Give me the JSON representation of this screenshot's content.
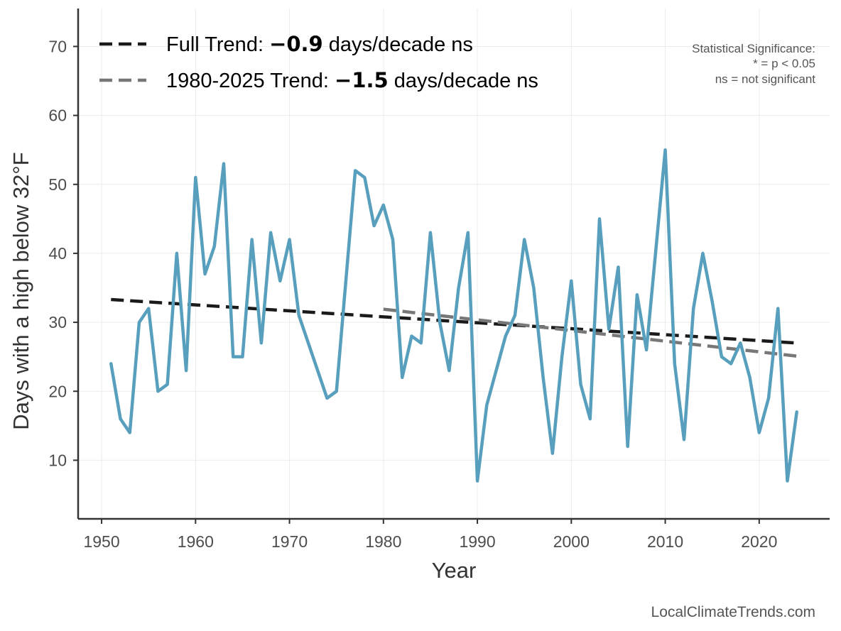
{
  "chart_data": {
    "type": "line",
    "xlabel": "Year",
    "ylabel": "Days with a high below 32°F",
    "xlim": [
      1947.5,
      2027.5
    ],
    "ylim": [
      1.5,
      75.5
    ],
    "xticks": [
      1950,
      1960,
      1970,
      1980,
      1990,
      2000,
      2010,
      2020
    ],
    "yticks": [
      10,
      20,
      30,
      40,
      50,
      60,
      70
    ],
    "grid": true,
    "legend_position": "top-left",
    "series": [
      {
        "color": "#579fbd",
        "x": [
          1951,
          1952,
          1953,
          1954,
          1955,
          1956,
          1957,
          1958,
          1959,
          1960,
          1961,
          1962,
          1963,
          1964,
          1965,
          1966,
          1967,
          1968,
          1969,
          1970,
          1971,
          1974,
          1975,
          1977,
          1978,
          1979,
          1980,
          1981,
          1982,
          1983,
          1984,
          1985,
          1986,
          1987,
          1988,
          1989,
          1990,
          1991,
          1993,
          1994,
          1995,
          1996,
          1997,
          1998,
          1999,
          2000,
          2001,
          2002,
          2003,
          2004,
          2005,
          2006,
          2007,
          2008,
          2010,
          2011,
          2012,
          2013,
          2014,
          2015,
          2016,
          2017,
          2018,
          2019,
          2020,
          2021,
          2022,
          2023,
          2024
        ],
        "values": [
          24,
          16,
          14,
          30,
          32,
          20,
          21,
          40,
          23,
          51,
          37,
          41,
          53,
          25,
          25,
          42,
          27,
          43,
          36,
          42,
          31,
          19,
          20,
          52,
          51,
          44,
          47,
          42,
          22,
          28,
          27,
          43,
          30,
          23,
          35,
          43,
          7,
          18,
          28,
          31,
          42,
          35,
          22,
          11,
          25,
          36,
          21,
          16,
          45,
          29,
          38,
          12,
          34,
          26,
          55,
          24,
          13,
          32,
          40,
          33,
          25,
          24,
          27,
          22,
          14,
          19,
          32,
          7,
          17
        ]
      },
      {
        "name": "Full Trend: −0.9 days/decade ns",
        "style": "dashed",
        "color": "#1a1a1a",
        "x": [
          1951,
          2024
        ],
        "values": [
          33.3,
          27.0
        ]
      },
      {
        "name": "1980-2025 Trend: −1.5 days/decade ns",
        "style": "dashed",
        "color": "#777777",
        "x": [
          1980,
          2024
        ],
        "values": [
          31.9,
          25.1
        ]
      }
    ]
  },
  "legend": {
    "items": [
      {
        "prefix": "Full Trend: ",
        "value": "−0.9",
        "suffix": " days/decade ns",
        "color": "#1a1a1a"
      },
      {
        "prefix": "1980-2025 Trend: ",
        "value": "−1.5",
        "suffix": " days/decade ns",
        "color": "#777777"
      }
    ]
  },
  "significance_note": {
    "title": "Statistical Significance:",
    "line1": "* = p < 0.05",
    "line2": "ns = not significant"
  },
  "source": "LocalClimateTrends.com"
}
